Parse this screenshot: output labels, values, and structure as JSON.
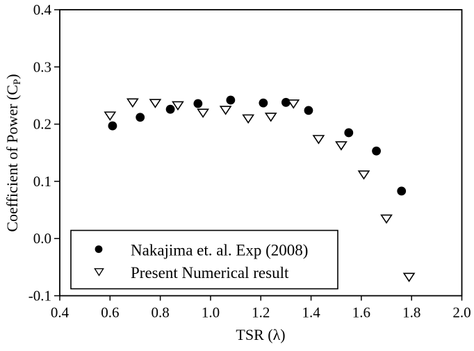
{
  "figure": {
    "background": "#ffffff",
    "frame_color": "#000000",
    "marker_color": "#000000"
  },
  "chart_data": {
    "type": "scatter",
    "title": "",
    "xlabel": "TSR (λ)",
    "ylabel_parts": {
      "prefix": "Coefficient of Power (C",
      "sub": "P",
      "suffix": ")"
    },
    "xlim": [
      0.4,
      2.0
    ],
    "ylim": [
      -0.1,
      0.4
    ],
    "x_ticks": [
      "0.4",
      "0.6",
      "0.8",
      "1.0",
      "1.2",
      "1.4",
      "1.6",
      "1.8",
      "2.0"
    ],
    "y_ticks": [
      "0.4",
      "0.3",
      "0.2",
      "0.1",
      "0.0",
      "-0.1"
    ],
    "grid": false,
    "legend_position": "lower-left-inside",
    "series": [
      {
        "name": "Nakajima et. al. Exp (2008)",
        "marker": "filled-circle",
        "color": "#000000",
        "points": [
          [
            0.61,
            0.197
          ],
          [
            0.72,
            0.212
          ],
          [
            0.84,
            0.226
          ],
          [
            0.95,
            0.236
          ],
          [
            1.08,
            0.242
          ],
          [
            1.21,
            0.237
          ],
          [
            1.3,
            0.238
          ],
          [
            1.39,
            0.224
          ],
          [
            1.55,
            0.185
          ],
          [
            1.66,
            0.153
          ],
          [
            1.76,
            0.083
          ]
        ]
      },
      {
        "name": "Present Numerical result",
        "marker": "open-triangle-down",
        "color": "#000000",
        "points": [
          [
            0.6,
            0.215
          ],
          [
            0.69,
            0.238
          ],
          [
            0.78,
            0.237
          ],
          [
            0.87,
            0.233
          ],
          [
            0.97,
            0.22
          ],
          [
            1.06,
            0.225
          ],
          [
            1.15,
            0.21
          ],
          [
            1.24,
            0.213
          ],
          [
            1.33,
            0.236
          ],
          [
            1.43,
            0.174
          ],
          [
            1.52,
            0.163
          ],
          [
            1.61,
            0.112
          ],
          [
            1.7,
            0.035
          ],
          [
            1.79,
            -0.067
          ]
        ]
      }
    ]
  }
}
